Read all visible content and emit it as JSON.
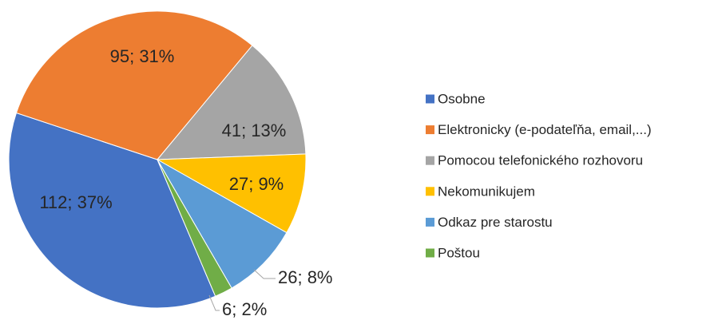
{
  "chart_data": {
    "type": "pie",
    "categories": [
      "Osobne",
      "Elektronicky (e-podateľňa, email,...)",
      "Pomocou telefonického rozhovoru",
      "Nekomunikujem",
      "Odkaz pre starostu",
      "Poštou"
    ],
    "values": [
      112,
      95,
      41,
      27,
      26,
      6
    ],
    "value_labels": [
      "112; 37%",
      "95; 31%",
      "41; 13%",
      "27; 9%",
      "26; 8%",
      "6; 2%"
    ],
    "colors": [
      "#4472c4",
      "#ed7d31",
      "#a5a5a5",
      "#ffc000",
      "#5b9bd5",
      "#70ad47"
    ],
    "legend": "right"
  }
}
